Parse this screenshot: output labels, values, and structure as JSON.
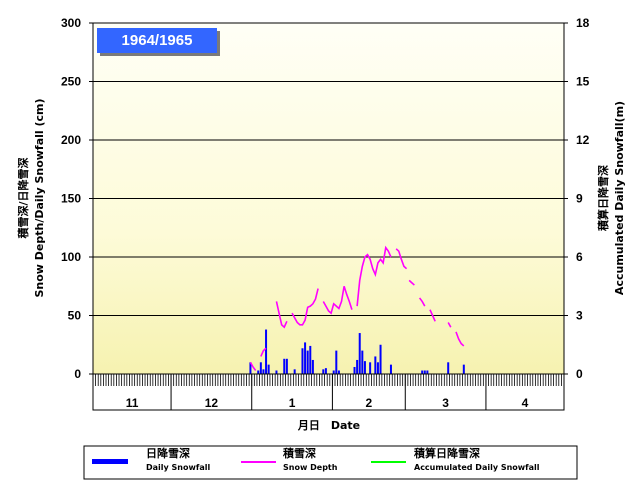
{
  "chart_data": {
    "type": "bar+line",
    "season": "1964/1965",
    "left_ylabel_jp": "積雪深/日降雪深",
    "left_ylabel_en": "Snow Depth/Daily Snowfall (cm)",
    "right_ylabel_jp": "積算日降雪深",
    "right_ylabel_en": "Accumulated Daily Snowfall(m)",
    "xlabel": "月日　Date",
    "left_ylim": [
      0,
      300
    ],
    "left_ticks": [
      "0",
      "50",
      "100",
      "150",
      "200",
      "250",
      "300"
    ],
    "right_ylim": [
      0,
      18
    ],
    "right_ticks": [
      "0",
      "3",
      "6",
      "9",
      "12",
      "15",
      "18"
    ],
    "months": [
      "11",
      "12",
      "1",
      "2",
      "3",
      "4"
    ],
    "month_days": [
      30,
      31,
      31,
      28,
      31,
      30
    ],
    "grid": true,
    "legend_position": "bottom",
    "legend": [
      {
        "jp": "日降雪深",
        "en": "Daily Snowfall",
        "color": "#0000ff"
      },
      {
        "jp": "積雪深",
        "en": "Snow Depth",
        "color": "#ff00ff"
      },
      {
        "jp": "積算日降雪深",
        "en": "Accumulated Daily Snowfall",
        "color": "#00ff00"
      }
    ],
    "daily_snowfall": [
      {
        "date": "12-31",
        "value": 10
      },
      {
        "date": "01-03",
        "value": 3
      },
      {
        "date": "01-04",
        "value": 10
      },
      {
        "date": "01-05",
        "value": 4
      },
      {
        "date": "01-06",
        "value": 38
      },
      {
        "date": "01-07",
        "value": 8
      },
      {
        "date": "01-10",
        "value": 3
      },
      {
        "date": "01-13",
        "value": 13
      },
      {
        "date": "01-14",
        "value": 13
      },
      {
        "date": "01-17",
        "value": 4
      },
      {
        "date": "01-20",
        "value": 22
      },
      {
        "date": "01-21",
        "value": 27
      },
      {
        "date": "01-22",
        "value": 20
      },
      {
        "date": "01-23",
        "value": 24
      },
      {
        "date": "01-24",
        "value": 12
      },
      {
        "date": "01-28",
        "value": 4
      },
      {
        "date": "01-29",
        "value": 5
      },
      {
        "date": "02-01",
        "value": 3
      },
      {
        "date": "02-02",
        "value": 20
      },
      {
        "date": "02-03",
        "value": 3
      },
      {
        "date": "02-09",
        "value": 6
      },
      {
        "date": "02-10",
        "value": 12
      },
      {
        "date": "02-11",
        "value": 35
      },
      {
        "date": "02-12",
        "value": 20
      },
      {
        "date": "02-13",
        "value": 11
      },
      {
        "date": "02-15",
        "value": 10
      },
      {
        "date": "02-17",
        "value": 15
      },
      {
        "date": "02-18",
        "value": 10
      },
      {
        "date": "02-19",
        "value": 25
      },
      {
        "date": "02-23",
        "value": 8
      },
      {
        "date": "03-07",
        "value": 3
      },
      {
        "date": "03-08",
        "value": 3
      },
      {
        "date": "03-09",
        "value": 3
      },
      {
        "date": "03-17",
        "value": 10
      },
      {
        "date": "03-23",
        "value": 8
      }
    ],
    "snow_depth": [
      [
        {
          "date": "12-31",
          "value": 10
        },
        {
          "date": "01-01",
          "value": 6
        },
        {
          "date": "01-02",
          "value": 3
        }
      ],
      [
        {
          "date": "01-04",
          "value": 15
        },
        {
          "date": "01-05",
          "value": 20
        },
        {
          "date": "01-06",
          "value": 22
        }
      ],
      [
        {
          "date": "01-10",
          "value": 62
        },
        {
          "date": "01-11",
          "value": 52
        },
        {
          "date": "01-12",
          "value": 42
        },
        {
          "date": "01-13",
          "value": 40
        },
        {
          "date": "01-14",
          "value": 45
        }
      ],
      [
        {
          "date": "01-16",
          "value": 52
        },
        {
          "date": "01-17",
          "value": 48
        },
        {
          "date": "01-18",
          "value": 44
        },
        {
          "date": "01-19",
          "value": 42
        },
        {
          "date": "01-20",
          "value": 42
        },
        {
          "date": "01-21",
          "value": 46
        },
        {
          "date": "01-22",
          "value": 57
        },
        {
          "date": "01-23",
          "value": 58
        },
        {
          "date": "01-24",
          "value": 60
        },
        {
          "date": "01-25",
          "value": 64
        },
        {
          "date": "01-26",
          "value": 73
        }
      ],
      [
        {
          "date": "01-28",
          "value": 62
        },
        {
          "date": "01-29",
          "value": 58
        },
        {
          "date": "01-30",
          "value": 54
        },
        {
          "date": "01-31",
          "value": 52
        },
        {
          "date": "02-01",
          "value": 60
        },
        {
          "date": "02-02",
          "value": 58
        },
        {
          "date": "02-03",
          "value": 56
        },
        {
          "date": "02-04",
          "value": 62
        },
        {
          "date": "02-05",
          "value": 75
        },
        {
          "date": "02-06",
          "value": 68
        },
        {
          "date": "02-07",
          "value": 62
        },
        {
          "date": "02-08",
          "value": 55
        }
      ],
      [
        {
          "date": "02-10",
          "value": 58
        },
        {
          "date": "02-11",
          "value": 80
        },
        {
          "date": "02-12",
          "value": 92
        },
        {
          "date": "02-13",
          "value": 100
        },
        {
          "date": "02-14",
          "value": 102
        },
        {
          "date": "02-15",
          "value": 98
        },
        {
          "date": "02-16",
          "value": 90
        },
        {
          "date": "02-17",
          "value": 85
        },
        {
          "date": "02-18",
          "value": 95
        },
        {
          "date": "02-19",
          "value": 98
        },
        {
          "date": "02-20",
          "value": 95
        },
        {
          "date": "02-21",
          "value": 108
        },
        {
          "date": "02-22",
          "value": 105
        },
        {
          "date": "02-23",
          "value": 100
        }
      ],
      [
        {
          "date": "02-25",
          "value": 107
        },
        {
          "date": "02-26",
          "value": 105
        },
        {
          "date": "02-27",
          "value": 98
        },
        {
          "date": "02-28",
          "value": 92
        },
        {
          "date": "03-01",
          "value": 90
        }
      ],
      [
        {
          "date": "03-02",
          "value": 80
        },
        {
          "date": "03-03",
          "value": 78
        },
        {
          "date": "03-04",
          "value": 76
        }
      ],
      [
        {
          "date": "03-06",
          "value": 65
        },
        {
          "date": "03-07",
          "value": 62
        },
        {
          "date": "03-08",
          "value": 58
        }
      ],
      [
        {
          "date": "03-10",
          "value": 55
        },
        {
          "date": "03-11",
          "value": 50
        },
        {
          "date": "03-12",
          "value": 45
        }
      ],
      [
        {
          "date": "03-17",
          "value": 44
        },
        {
          "date": "03-18",
          "value": 40
        }
      ],
      [
        {
          "date": "03-20",
          "value": 36
        },
        {
          "date": "03-21",
          "value": 30
        },
        {
          "date": "03-22",
          "value": 26
        },
        {
          "date": "03-23",
          "value": 24
        }
      ]
    ],
    "accumulated_daily_snowfall": []
  }
}
